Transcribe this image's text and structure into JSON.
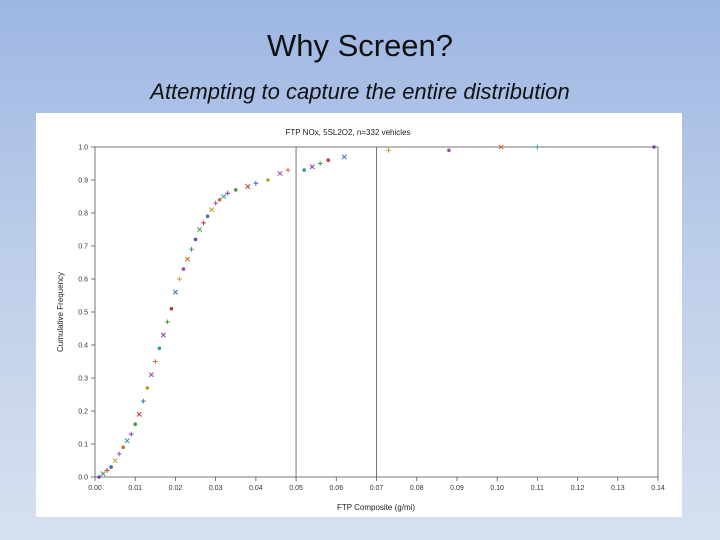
{
  "slide": {
    "title": "Why Screen?",
    "subtitle": "Attempting to capture the entire distribution"
  },
  "chart_data": {
    "type": "scatter",
    "title": "FTP NOx, 5SL2O2, n=332 vehicles",
    "xlabel": "FTP Composite (g/mi)",
    "ylabel": "Cumulative Frequency",
    "xlim": [
      0.0,
      0.14
    ],
    "ylim": [
      0.0,
      1.0
    ],
    "x_ticks": [
      0.0,
      0.01,
      0.02,
      0.03,
      0.04,
      0.05,
      0.06,
      0.07,
      0.08,
      0.09,
      0.1,
      0.11,
      0.12,
      0.13,
      0.14
    ],
    "x_tick_labels": [
      "0.00",
      "0.01",
      "0.02",
      "0.03",
      "0.04",
      "0.05",
      "0.06",
      "0.07",
      "0.08",
      "0.09",
      "0.10",
      "0.11",
      "0.12",
      "0.13",
      "0.14"
    ],
    "y_ticks": [
      0.0,
      0.1,
      0.2,
      0.3,
      0.4,
      0.5,
      0.6,
      0.7,
      0.8,
      0.9,
      1.0
    ],
    "y_tick_labels": [
      "0.0",
      "0.1",
      "0.2",
      "0.3",
      "0.4",
      "0.5",
      "0.6",
      "0.7",
      "0.8",
      "0.9",
      "1.0"
    ],
    "vertical_lines": [
      0.05,
      0.07
    ],
    "grid": false,
    "legend": "none",
    "points": {
      "x": [
        0.001,
        0.002,
        0.003,
        0.004,
        0.005,
        0.006,
        0.007,
        0.008,
        0.009,
        0.01,
        0.011,
        0.012,
        0.013,
        0.014,
        0.015,
        0.016,
        0.017,
        0.018,
        0.019,
        0.02,
        0.021,
        0.022,
        0.023,
        0.024,
        0.025,
        0.026,
        0.027,
        0.028,
        0.029,
        0.03,
        0.031,
        0.032,
        0.033,
        0.035,
        0.038,
        0.04,
        0.043,
        0.046,
        0.048,
        0.052,
        0.054,
        0.056,
        0.058,
        0.062,
        0.073,
        0.088,
        0.101,
        0.11,
        0.139
      ],
      "y": [
        0.0,
        0.01,
        0.02,
        0.03,
        0.05,
        0.07,
        0.09,
        0.11,
        0.13,
        0.16,
        0.19,
        0.23,
        0.27,
        0.31,
        0.35,
        0.39,
        0.43,
        0.47,
        0.51,
        0.56,
        0.6,
        0.63,
        0.66,
        0.69,
        0.72,
        0.75,
        0.77,
        0.79,
        0.81,
        0.83,
        0.84,
        0.85,
        0.86,
        0.87,
        0.88,
        0.89,
        0.9,
        0.92,
        0.93,
        0.93,
        0.94,
        0.95,
        0.96,
        0.97,
        0.99,
        0.99,
        1.0,
        1.0,
        1.0
      ]
    },
    "marker_colors": [
      "#7a3db8",
      "#3d9c3d",
      "#c03a3a",
      "#3a6fc0",
      "#b8a030",
      "#9a4db0",
      "#d06a2a",
      "#2a9aa0"
    ]
  }
}
